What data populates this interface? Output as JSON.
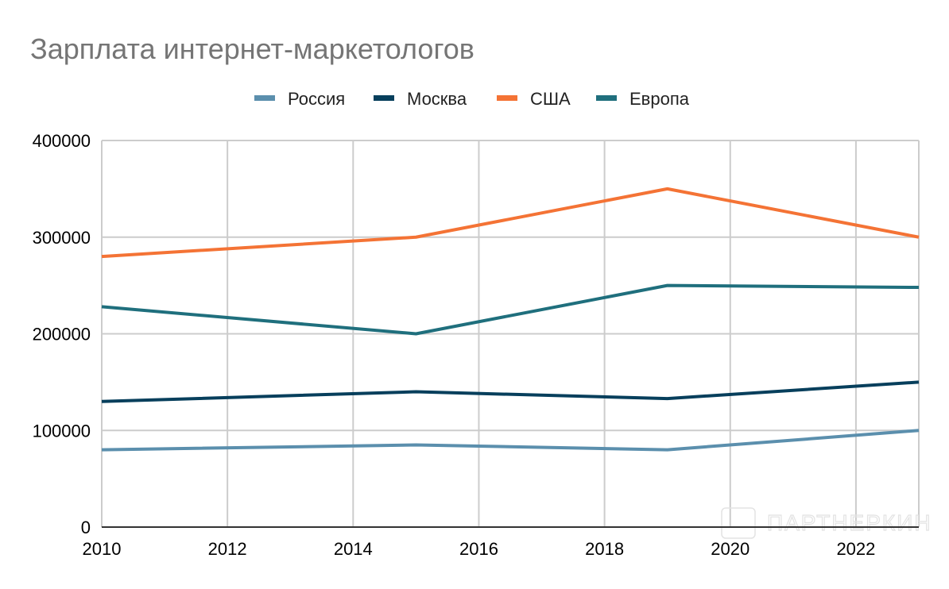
{
  "chart_data": {
    "type": "line",
    "title": "Зарплата интернет-маркетологов",
    "xlabel": "",
    "ylabel": "",
    "x": [
      2010,
      2015,
      2019,
      2023
    ],
    "xlim": [
      2010,
      2023
    ],
    "ylim": [
      0,
      400000
    ],
    "xticks": [
      "2010",
      "2012",
      "2014",
      "2016",
      "2018",
      "2020",
      "2022"
    ],
    "yticks": [
      "0",
      "100000",
      "200000",
      "300000",
      "400000"
    ],
    "grid": true,
    "legend_position": "top",
    "series": [
      {
        "name": "Россия",
        "color": "#5b8fad",
        "values": [
          80000,
          85000,
          80000,
          100000
        ]
      },
      {
        "name": "Москва",
        "color": "#073f5c",
        "values": [
          130000,
          140000,
          133000,
          150000
        ]
      },
      {
        "name": "США",
        "color": "#f47335",
        "values": [
          280000,
          300000,
          350000,
          300000
        ]
      },
      {
        "name": "Европа",
        "color": "#1f6f7d",
        "values": [
          228000,
          200000,
          250000,
          248000
        ]
      }
    ],
    "watermark": "ПАРТНЕРКИН"
  }
}
